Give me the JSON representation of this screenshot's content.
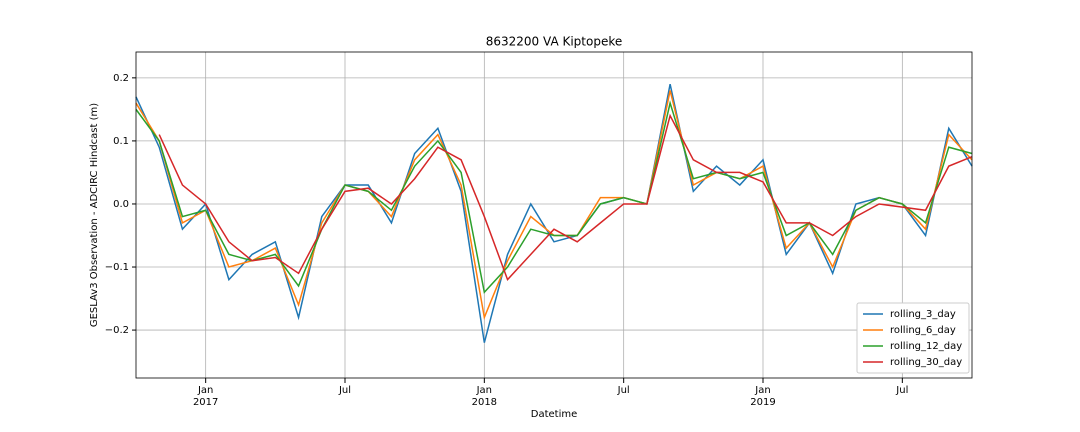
{
  "chart_data": {
    "type": "line",
    "title": "8632200 VA Kiptopeke",
    "xlabel": "Datetime",
    "ylabel": "GESLAv3 Observation - ADCIRC Hindcast (m)",
    "x": [
      "2016-10",
      "2016-11",
      "2016-12",
      "2017-01",
      "2017-02",
      "2017-03",
      "2017-04",
      "2017-05",
      "2017-06",
      "2017-07",
      "2017-08",
      "2017-09",
      "2017-10",
      "2017-11",
      "2017-12",
      "2018-01",
      "2018-02",
      "2018-03",
      "2018-04",
      "2018-05",
      "2018-06",
      "2018-07",
      "2018-08",
      "2018-09",
      "2018-10",
      "2018-11",
      "2018-12",
      "2019-01",
      "2019-02",
      "2019-03",
      "2019-04",
      "2019-05",
      "2019-06",
      "2019-07",
      "2019-08",
      "2019-09",
      "2019-10"
    ],
    "series": [
      {
        "name": "rolling_3_day",
        "color": "#1f77b4",
        "values": [
          0.17,
          0.09,
          -0.04,
          0.0,
          -0.12,
          -0.08,
          -0.06,
          -0.18,
          -0.02,
          0.03,
          0.03,
          -0.03,
          0.08,
          0.12,
          0.02,
          -0.22,
          -0.08,
          0.0,
          -0.06,
          -0.05,
          0.0,
          0.01,
          0.0,
          0.19,
          0.02,
          0.06,
          0.03,
          0.07,
          -0.08,
          -0.03,
          -0.11,
          0.0,
          0.01,
          0.0,
          -0.05,
          0.12,
          0.06
        ]
      },
      {
        "name": "rolling_6_day",
        "color": "#ff7f0e",
        "values": [
          0.16,
          0.1,
          -0.03,
          -0.01,
          -0.1,
          -0.09,
          -0.07,
          -0.16,
          -0.03,
          0.03,
          0.02,
          -0.02,
          0.07,
          0.11,
          0.03,
          -0.18,
          -0.09,
          -0.02,
          -0.05,
          -0.05,
          0.01,
          0.01,
          0.0,
          0.18,
          0.03,
          0.05,
          0.04,
          0.06,
          -0.07,
          -0.03,
          -0.1,
          -0.01,
          0.01,
          0.0,
          -0.04,
          0.11,
          0.07
        ]
      },
      {
        "name": "rolling_12_day",
        "color": "#2ca02c",
        "values": [
          0.15,
          0.1,
          -0.02,
          -0.01,
          -0.08,
          -0.09,
          -0.08,
          -0.13,
          -0.04,
          0.03,
          0.02,
          -0.01,
          0.06,
          0.1,
          0.05,
          -0.14,
          -0.1,
          -0.04,
          -0.05,
          -0.05,
          0.0,
          0.01,
          0.0,
          0.16,
          0.04,
          0.05,
          0.04,
          0.05,
          -0.05,
          -0.03,
          -0.08,
          -0.01,
          0.01,
          0.0,
          -0.03,
          0.09,
          0.08
        ]
      },
      {
        "name": "rolling_30_day",
        "color": "#d62728",
        "values": [
          null,
          0.11,
          0.03,
          0.0,
          -0.06,
          -0.09,
          -0.085,
          -0.11,
          -0.04,
          0.02,
          0.025,
          0.0,
          0.04,
          0.09,
          0.07,
          -0.02,
          -0.12,
          -0.08,
          -0.04,
          -0.06,
          -0.03,
          0.0,
          0.0,
          0.14,
          0.07,
          0.05,
          0.05,
          0.035,
          -0.03,
          -0.03,
          -0.05,
          -0.02,
          0.0,
          -0.005,
          -0.01,
          0.06,
          0.075
        ]
      }
    ],
    "xlim": [
      "2016-10",
      "2019-10"
    ],
    "xticks": [
      {
        "value": "2017-01",
        "label": "Jan",
        "year": "2017"
      },
      {
        "value": "2017-07",
        "label": "Jul"
      },
      {
        "value": "2018-01",
        "label": "Jan",
        "year": "2018"
      },
      {
        "value": "2018-07",
        "label": "Jul"
      },
      {
        "value": "2019-01",
        "label": "Jan",
        "year": "2019"
      },
      {
        "value": "2019-07",
        "label": "Jul"
      }
    ],
    "ylim": [
      -0.276,
      0.241
    ],
    "yticks": [
      {
        "value": -0.2,
        "label": "−0.2"
      },
      {
        "value": -0.1,
        "label": "−0.1"
      },
      {
        "value": 0,
        "label": "0.0"
      },
      0.1,
      0.2
    ],
    "grid": true,
    "legend": "lower right"
  }
}
